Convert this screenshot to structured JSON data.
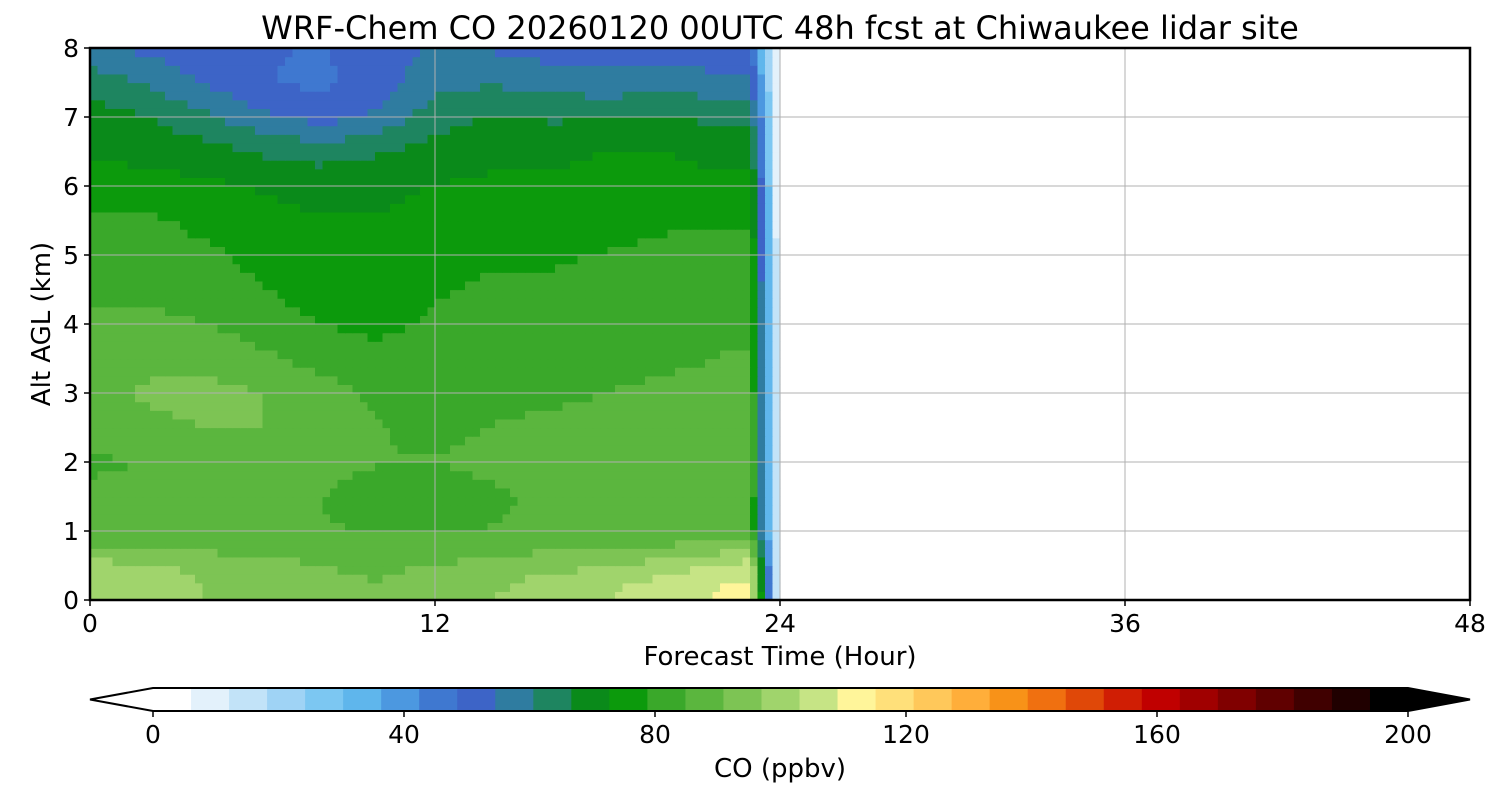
{
  "chart_data": {
    "type": "heatmap",
    "title": "WRF-Chem CO  20260120 00UTC 48h fcst at Chiwaukee lidar site",
    "xlabel": "Forecast Time (Hour)",
    "ylabel": "Alt AGL (km)",
    "xlim": [
      0,
      48
    ],
    "ylim": [
      0,
      8
    ],
    "x_ticks": [
      "0",
      "12",
      "24",
      "36",
      "48"
    ],
    "y_ticks": [
      "0",
      "1",
      "2",
      "3",
      "4",
      "5",
      "6",
      "7",
      "8"
    ],
    "grid": true,
    "data_extent_hours": [
      0,
      24
    ],
    "altitudes_km": [
      0,
      0.25,
      0.5,
      0.75,
      1,
      1.5,
      2,
      2.5,
      3,
      3.5,
      4,
      4.5,
      5,
      5.5,
      6,
      6.5,
      7,
      7.5,
      8
    ],
    "hours": [
      0,
      2,
      4,
      6,
      8,
      10,
      12,
      14,
      16,
      18,
      20,
      22,
      23
    ],
    "z_ppbv": [
      [
        103,
        102,
        97,
        95,
        92,
        91,
        94,
        97,
        100,
        103,
        106,
        110,
        111
      ],
      [
        102,
        101,
        97,
        95,
        92,
        91,
        93,
        96,
        99,
        102,
        105,
        109,
        110
      ],
      [
        99,
        98,
        95,
        93,
        91,
        90,
        91,
        93,
        95,
        97,
        100,
        104,
        106
      ],
      [
        92,
        92,
        90,
        89,
        88,
        88,
        88,
        89,
        90,
        91,
        92,
        95,
        96
      ],
      [
        86,
        86,
        86,
        86,
        85,
        85,
        85,
        85,
        86,
        86,
        86,
        86,
        86
      ],
      [
        86,
        86,
        86,
        86,
        85,
        82,
        82,
        84,
        86,
        88,
        90,
        86,
        86
      ],
      [
        84,
        85,
        87,
        88,
        87,
        85,
        85,
        86,
        86,
        86,
        86,
        87,
        87
      ],
      [
        87,
        89,
        91,
        91,
        88,
        85,
        84,
        85,
        86,
        86,
        87,
        87,
        87
      ],
      [
        89,
        92,
        93,
        91,
        87,
        84,
        83,
        83,
        84,
        85,
        86,
        86,
        86
      ],
      [
        87,
        89,
        89,
        86,
        83,
        81,
        82,
        83,
        83,
        83,
        84,
        85,
        85
      ],
      [
        86,
        86,
        85,
        82,
        79,
        77,
        80,
        82,
        82,
        82,
        83,
        84,
        84
      ],
      [
        84,
        84,
        82,
        79,
        76,
        75,
        78,
        80,
        80,
        81,
        82,
        83,
        83
      ],
      [
        83,
        82,
        80,
        77,
        74,
        74,
        76,
        78,
        78,
        79,
        80,
        81,
        81
      ],
      [
        81,
        80,
        77,
        75,
        73,
        73,
        75,
        76,
        76,
        77,
        78,
        78,
        78
      ],
      [
        75,
        75,
        74,
        72,
        71,
        71,
        73,
        74,
        74,
        75,
        74,
        74,
        74
      ],
      [
        72,
        71,
        69,
        66,
        64,
        66,
        69,
        71,
        71,
        73,
        73,
        71,
        71
      ],
      [
        70,
        67,
        62,
        56,
        52,
        56,
        64,
        67,
        66,
        66,
        67,
        65,
        64
      ],
      [
        64,
        60,
        54,
        49,
        47,
        51,
        59,
        60,
        58,
        57,
        58,
        57,
        56
      ],
      [
        56,
        53,
        50,
        49,
        48,
        52,
        55,
        54,
        52,
        51,
        50,
        50,
        50
      ]
    ],
    "colorbar": {
      "label": "CO  (ppbv)",
      "min": 0,
      "max": 200,
      "ticks": [
        "0",
        "40",
        "80",
        "120",
        "160",
        "200"
      ],
      "extend": "both",
      "colors": [
        "#ffffff",
        "#e3f1fb",
        "#c2e3f8",
        "#9fd3f5",
        "#7cc7f2",
        "#5fb6ec",
        "#4c98e0",
        "#3f78d0",
        "#3d64c7",
        "#2f7ca0",
        "#1e8560",
        "#0a8a1a",
        "#0c9a0c",
        "#3aa82a",
        "#5bb63e",
        "#7dc454",
        "#a0d46c",
        "#c6e485",
        "#fff59a",
        "#ffe07a",
        "#ffc85a",
        "#ffae3a",
        "#f89218",
        "#f07010",
        "#e04808",
        "#d01e04",
        "#c00000",
        "#a00000",
        "#800000",
        "#600000",
        "#400000",
        "#200000",
        "#000000"
      ],
      "right_extension_color": "#000000",
      "left_extension_color": "#ffffff"
    }
  }
}
